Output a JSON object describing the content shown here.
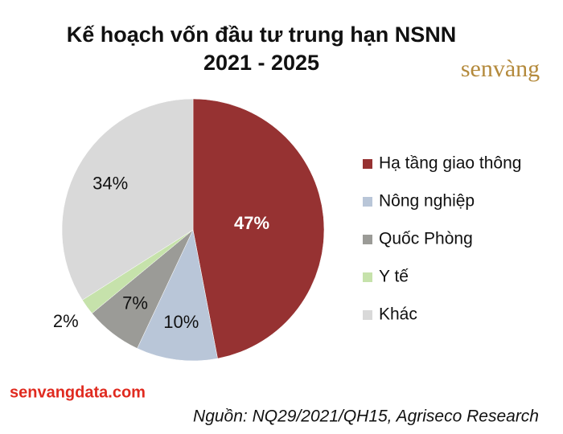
{
  "chart_data": {
    "type": "pie",
    "title": [
      "Kế hoạch vốn đầu tư trung hạn NSNN",
      "2021 - 2025"
    ],
    "categories": [
      "Hạ tầng giao thông",
      "Nông nghiệp",
      "Quốc Phòng",
      "Y tế",
      "Khác"
    ],
    "values": [
      47,
      10,
      7,
      2,
      34
    ],
    "value_labels": [
      "47%",
      "10%",
      "7%",
      "2%",
      "34%"
    ],
    "colors": [
      "#963232",
      "#b9c6d8",
      "#9b9b97",
      "#c6e2ab",
      "#d9d9d9"
    ],
    "legend": "right",
    "logo": "senvàng",
    "website": "senvangdata.com",
    "source": "Nguồn: NQ29/2021/QH15, Agriseco Research"
  }
}
